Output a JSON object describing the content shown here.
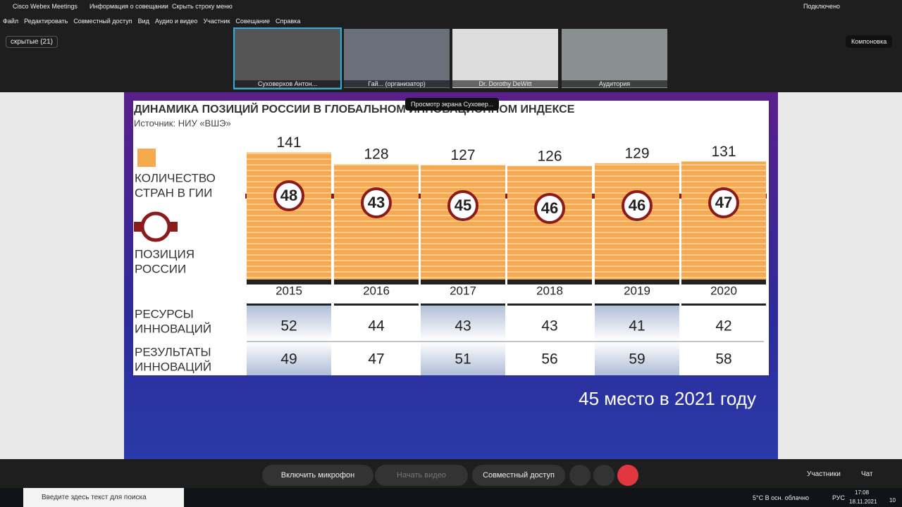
{
  "window": {
    "title": "Cisco Webex Meetings",
    "meeting_info": "Информация о совещании",
    "hide_menu": "Скрыть строку меню",
    "status": "Подключено"
  },
  "menu": [
    "Файл",
    "Редактировать",
    "Совместный доступ",
    "Вид",
    "Аудио и видео",
    "Участник",
    "Совещание",
    "Справка"
  ],
  "hidden_participants": "скрытые (21)",
  "layout_button": "Компоновка",
  "videos": [
    "Суховерхов Антон...",
    "Гай... (организатор)",
    "Dr. Dorothy DeWitt",
    "Аудитория"
  ],
  "share_tooltip": "Просмотр экрана Суховер...",
  "slide": {
    "title": "ДИНАМИКА ПОЗИЦИЙ РОССИИ В ГЛОБАЛЬНОМ ИННОВАЦИОННОМ ИНДЕКСЕ",
    "source": "Источник: НИУ «ВШЭ»",
    "legend_countries": [
      "КОЛИЧЕСТВО",
      "СТРАН В ГИИ"
    ],
    "legend_position": [
      "ПОЗИЦИЯ",
      "РОССИИ"
    ],
    "years": [
      "2015",
      "2016",
      "2017",
      "2018",
      "2019",
      "2020"
    ],
    "countries": [
      141,
      128,
      127,
      126,
      129,
      131
    ],
    "positions": [
      48,
      43,
      45,
      46,
      46,
      47
    ],
    "resources_label": [
      "РЕСУРСЫ",
      "ИННОВАЦИЙ"
    ],
    "resources": [
      52,
      44,
      43,
      43,
      41,
      42
    ],
    "results_label": [
      "РЕЗУЛЬТАТЫ",
      "ИННОВАЦИЙ"
    ],
    "results": [
      49,
      47,
      51,
      56,
      59,
      58
    ],
    "caption": "45 место в 2021 году"
  },
  "controls": {
    "mic": "Включить микрофон",
    "video": "Начать видео",
    "share": "Совместный доступ",
    "participants": "Участники",
    "chat": "Чат"
  },
  "taskbar": {
    "search": "Введите здесь текст для поиска",
    "weather": "5°C  В осн. облачно",
    "lang": "РУС",
    "time": "17:08",
    "date": "18.11.2021",
    "notifications": "10"
  }
}
